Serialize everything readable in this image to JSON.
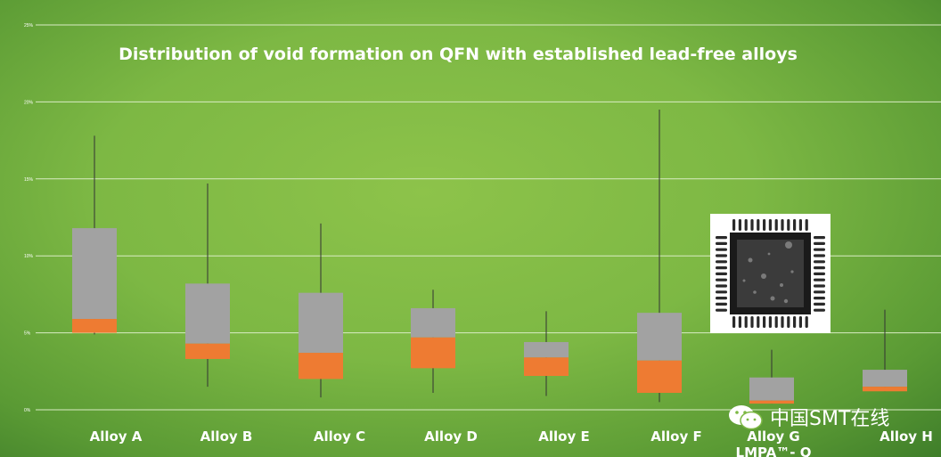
{
  "chart_data": {
    "type": "box",
    "title": "Distribution of void formation on QFN with established lead-free alloys",
    "xlabel": "",
    "ylabel": "",
    "ylim": [
      0,
      25
    ],
    "yticks": [
      0,
      5,
      10,
      15,
      20,
      25
    ],
    "ytick_labels": [
      "0%",
      "5%",
      "10%",
      "15%",
      "20%",
      "25%"
    ],
    "grid": true,
    "categories": [
      "Alloy A",
      "Alloy B",
      "Alloy C",
      "Alloy D",
      "Alloy  E",
      "Alloy  F",
      "Alloy G\nLMPA™- Q",
      "Alloy  H"
    ],
    "series": [
      {
        "name": "min",
        "values": [
          4.9,
          1.5,
          0.8,
          1.1,
          0.9,
          0.5,
          0.4,
          1.2
        ]
      },
      {
        "name": "q1",
        "values": [
          5.0,
          3.3,
          2.0,
          2.7,
          2.2,
          1.1,
          0.4,
          1.2
        ]
      },
      {
        "name": "median",
        "values": [
          5.9,
          4.3,
          3.7,
          4.7,
          3.4,
          3.2,
          0.6,
          1.5
        ]
      },
      {
        "name": "q3",
        "values": [
          11.8,
          8.2,
          7.6,
          6.6,
          4.4,
          6.3,
          2.1,
          2.6
        ]
      },
      {
        "name": "max",
        "values": [
          17.8,
          14.7,
          12.1,
          7.8,
          6.4,
          19.5,
          3.9,
          6.5
        ]
      }
    ],
    "colors": {
      "upper_box": "#a2a2a2",
      "lower_box": "#ee7b32",
      "whisker": "#333333",
      "grid": "#d9ecc4"
    }
  },
  "inset": {
    "name": "qfn-xray-image"
  },
  "watermark": {
    "icon": "wechat-icon",
    "text": "中国SMT在线"
  }
}
